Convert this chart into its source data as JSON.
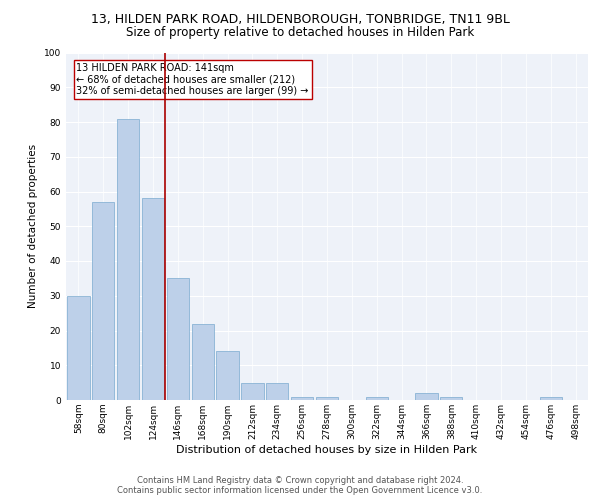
{
  "title_line1": "13, HILDEN PARK ROAD, HILDENBOROUGH, TONBRIDGE, TN11 9BL",
  "title_line2": "Size of property relative to detached houses in Hilden Park",
  "xlabel": "Distribution of detached houses by size in Hilden Park",
  "ylabel": "Number of detached properties",
  "footer_line1": "Contains HM Land Registry data © Crown copyright and database right 2024.",
  "footer_line2": "Contains public sector information licensed under the Open Government Licence v3.0.",
  "categories": [
    "58sqm",
    "80sqm",
    "102sqm",
    "124sqm",
    "146sqm",
    "168sqm",
    "190sqm",
    "212sqm",
    "234sqm",
    "256sqm",
    "278sqm",
    "300sqm",
    "322sqm",
    "344sqm",
    "366sqm",
    "388sqm",
    "410sqm",
    "432sqm",
    "454sqm",
    "476sqm",
    "498sqm"
  ],
  "values": [
    30,
    57,
    81,
    58,
    35,
    22,
    14,
    5,
    5,
    1,
    1,
    0,
    1,
    0,
    2,
    1,
    0,
    0,
    0,
    1,
    0
  ],
  "bar_color": "#bdd0e9",
  "bar_edge_color": "#7aaacf",
  "vline_index": 3.5,
  "vline_color": "#aa0000",
  "annotation_text": "13 HILDEN PARK ROAD: 141sqm\n← 68% of detached houses are smaller (212)\n32% of semi-detached houses are larger (99) →",
  "ylim": [
    0,
    100
  ],
  "background_color": "#eef2f9",
  "grid_color": "#ffffff",
  "title_fontsize": 9,
  "subtitle_fontsize": 8.5,
  "axis_label_fontsize": 7.5,
  "tick_fontsize": 6.5,
  "annotation_fontsize": 7,
  "footer_fontsize": 6
}
